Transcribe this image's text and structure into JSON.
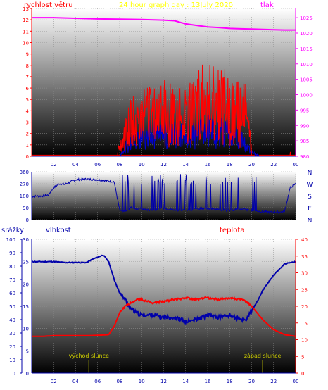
{
  "chart_data": [
    {
      "type": "line",
      "title": "24 hour graph day : 13July 2020",
      "ylabel_left": "rychlost větru",
      "ylabel_right": "tlak",
      "x_ticks": [
        "02",
        "04",
        "06",
        "08",
        "10",
        "12",
        "14",
        "16",
        "18",
        "20",
        "22",
        "00"
      ],
      "y_left_ticks": [
        "0",
        "1",
        "2",
        "3",
        "4",
        "5",
        "6",
        "7",
        "8",
        "9",
        "10",
        "11",
        "12",
        "13"
      ],
      "y_right_ticks": [
        "980",
        "985",
        "990",
        "995",
        "1000",
        "1005",
        "1010",
        "1015",
        "1020",
        "1025"
      ],
      "ylim_left": [
        0,
        13
      ],
      "ylim_right": [
        980,
        1028
      ],
      "colors": {
        "wind": "#ff0000",
        "gust": "#0000cc",
        "pressure": "#ff00ff"
      },
      "series": [
        {
          "name": "tlak",
          "axis": "right",
          "x": [
            0,
            2,
            4,
            6,
            8,
            10,
            12,
            13,
            14,
            15,
            16,
            17,
            18,
            19,
            20,
            21,
            22,
            23,
            24
          ],
          "values": [
            1025,
            1025,
            1024.8,
            1024.6,
            1024.5,
            1024.4,
            1024.2,
            1024,
            1023,
            1022.5,
            1022,
            1021.8,
            1021.5,
            1021.4,
            1021.3,
            1021.2,
            1021.1,
            1021,
            1021
          ]
        },
        {
          "axis": "left",
          "x": [
            0,
            4.5,
            7.5,
            8.3,
            9,
            9.5,
            10,
            11,
            12,
            13,
            14,
            15,
            16,
            17,
            18,
            19,
            19.5,
            20,
            21,
            24
          ],
          "values": [
            0,
            0,
            0,
            1.2,
            3.5,
            2.8,
            3.2,
            3.6,
            3.8,
            3.4,
            3.3,
            4.1,
            5,
            4.5,
            4.4,
            3.5,
            3.7,
            0.5,
            0,
            0
          ]
        },
        {
          "axis": "left",
          "x": [
            0,
            8,
            9,
            10,
            11,
            12,
            13,
            14,
            15,
            16,
            17,
            18,
            19,
            20,
            21,
            24
          ],
          "values": [
            0,
            0,
            1.4,
            1.8,
            2.0,
            2.1,
            1.9,
            1.8,
            2.0,
            2.4,
            2.2,
            2.0,
            1.6,
            0.3,
            0,
            0
          ]
        }
      ]
    },
    {
      "type": "scatter",
      "ylabel_right": [
        "N",
        "W",
        "S",
        "E",
        "N"
      ],
      "y_ticks": [
        "0",
        "90",
        "180",
        "270",
        "360"
      ],
      "ylim": [
        0,
        360
      ],
      "colors": {
        "direction": "#0000aa"
      },
      "series": [
        {
          "name": "směr větru",
          "x": [
            0,
            1,
            1.5,
            2,
            2.5,
            3,
            4,
            5,
            6,
            7,
            7.5,
            8,
            8.5,
            9,
            10,
            11,
            12,
            13,
            14,
            15,
            16,
            17,
            18,
            19,
            20,
            21,
            22,
            23,
            23.5,
            24
          ],
          "values": [
            175,
            178,
            185,
            240,
            270,
            265,
            300,
            305,
            300,
            290,
            285,
            70,
            60,
            90,
            80,
            70,
            85,
            75,
            70,
            80,
            85,
            75,
            70,
            80,
            70,
            60,
            55,
            60,
            240,
            270
          ]
        }
      ]
    },
    {
      "type": "line",
      "ylabel_left": "srážky",
      "ylabel_left2": "vlhkost",
      "ylabel_right": "teplota",
      "x_ticks": [
        "02",
        "04",
        "06",
        "08",
        "10",
        "12",
        "14",
        "16",
        "18",
        "20",
        "22",
        "00"
      ],
      "y_precip_ticks": [
        "0",
        "10",
        "20",
        "30",
        "40",
        "50",
        "60",
        "70",
        "80",
        "90",
        "100"
      ],
      "y_humidity_ticks": [
        "0",
        "5",
        "10",
        "15",
        "20",
        "25",
        "30"
      ],
      "y_temp_ticks": [
        "0",
        "5",
        "10",
        "15",
        "20",
        "25",
        "30",
        "35",
        "40"
      ],
      "ylim_humidity": [
        0,
        30
      ],
      "ylim_temp": [
        0,
        40
      ],
      "annotations": [
        "východ slunce",
        "západ slunce"
      ],
      "sunrise_hour": 5.2,
      "sunset_hour": 21.0,
      "colors": {
        "humidity": "#0000aa",
        "temperature": "#ff0000",
        "sun": "#cccc00"
      },
      "series": [
        {
          "name": "vlhkost",
          "axis": "humidity",
          "x": [
            0,
            1,
            2,
            3,
            4,
            5,
            5.5,
            6,
            6.5,
            7,
            7.5,
            8,
            8.5,
            9,
            9.5,
            10,
            11,
            12,
            13,
            14,
            15,
            16,
            17,
            18,
            19,
            19.5,
            20,
            20.5,
            21,
            22,
            23,
            24
          ],
          "values": [
            25,
            25,
            25,
            24.8,
            24.8,
            24.8,
            25.5,
            26,
            26.5,
            25,
            21,
            18,
            16.5,
            14.5,
            13.5,
            13,
            13,
            12.5,
            12.5,
            11.5,
            12,
            13,
            12.5,
            13,
            12,
            12,
            14,
            16,
            18.5,
            22,
            24.5,
            25
          ]
        },
        {
          "name": "teplota",
          "axis": "temp",
          "x": [
            0,
            1,
            2,
            3,
            4,
            5,
            6,
            7,
            7.5,
            8,
            8.5,
            9,
            9.5,
            10,
            11,
            12,
            13,
            14,
            15,
            16,
            17,
            18,
            19,
            19.5,
            20,
            21,
            22,
            23,
            24
          ],
          "values": [
            11,
            11,
            11.2,
            11.2,
            11.2,
            11.2,
            11.3,
            11.5,
            14,
            18,
            20,
            21,
            22,
            22,
            21,
            21.5,
            22,
            22.5,
            22,
            22.5,
            22,
            22.5,
            22,
            21.5,
            20,
            16,
            13,
            11.5,
            11
          ]
        }
      ]
    }
  ]
}
